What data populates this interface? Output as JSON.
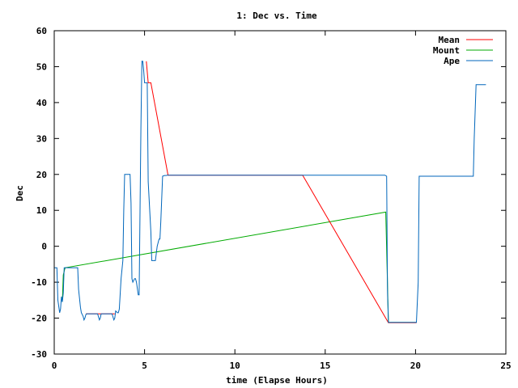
{
  "chart_data": {
    "type": "line",
    "title": "1: Dec vs. Time",
    "xlabel": "time (Elapse Hours)",
    "ylabel": "Dec",
    "xlim": [
      0,
      25
    ],
    "ylim": [
      -30,
      60
    ],
    "xticks": [
      0,
      5,
      10,
      15,
      20,
      25
    ],
    "yticks": [
      -30,
      -20,
      -10,
      0,
      10,
      20,
      30,
      40,
      50,
      60
    ],
    "grid": false,
    "legend_position": "top-right",
    "series": [
      {
        "name": "Mean",
        "color": "#ff0000",
        "x": [
          1.75,
          3.35,
          3.35,
          5.1,
          5.1,
          5.2,
          5.2,
          5.35,
          6.3,
          13.75,
          18.5,
          20.05
        ],
        "y": [
          -18.8,
          -18.8,
          null,
          51.5,
          51.5,
          45.5,
          45.5,
          45.5,
          19.8,
          19.8,
          -21.3,
          -21.3
        ]
      },
      {
        "name": "Mount",
        "color": "#00aa00",
        "x": [
          0.45,
          0.5,
          0.6,
          18.35,
          18.5,
          20.05
        ],
        "y": [
          -15.5,
          -8.0,
          -6.0,
          9.5,
          -21.2,
          -21.2
        ]
      },
      {
        "name": "Ape",
        "color": "#0066bb",
        "x": [
          0.0,
          0.15,
          0.2,
          0.3,
          0.35,
          0.4,
          0.45,
          0.5,
          0.55,
          0.6,
          1.3,
          1.35,
          1.45,
          1.5,
          1.6,
          1.65,
          1.7,
          1.75,
          1.8,
          2.4,
          2.5,
          2.55,
          2.6,
          3.2,
          3.3,
          3.35,
          3.4,
          3.5,
          3.55,
          3.6,
          3.7,
          3.8,
          3.85,
          3.9,
          4.0,
          4.05,
          4.1,
          4.15,
          4.2,
          4.25,
          4.3,
          4.35,
          4.45,
          4.5,
          4.55,
          4.65,
          4.7,
          4.8,
          4.85,
          4.9,
          4.95,
          5.0,
          5.1,
          5.15,
          5.2,
          5.35,
          5.4,
          5.45,
          5.5,
          5.55,
          5.6,
          5.7,
          5.8,
          5.85,
          5.9,
          6.0,
          6.1,
          6.2,
          6.25,
          6.3,
          18.3,
          18.4,
          18.45,
          18.5,
          19.0,
          20.05,
          20.15,
          20.2,
          23.2,
          23.25,
          23.35,
          23.4,
          23.9
        ],
        "y": [
          -6.0,
          -6.0,
          -15.0,
          -18.5,
          -17.5,
          -14.0,
          -15.5,
          -13.0,
          -6.0,
          -6.0,
          -6.0,
          -12.0,
          -17.0,
          -18.5,
          -19.5,
          -20.5,
          -20.0,
          -19.0,
          -18.8,
          -18.8,
          -20.5,
          -20.0,
          -18.8,
          -18.8,
          -20.5,
          -20.0,
          -18.0,
          -18.5,
          -18.5,
          -17.5,
          -9.0,
          -4.0,
          10.0,
          20.0,
          20.0,
          20.0,
          20.0,
          20.0,
          20.0,
          12.0,
          -9.0,
          -10.0,
          -9.0,
          -9.0,
          -10.0,
          -13.5,
          -13.5,
          33.0,
          51.5,
          51.5,
          49.0,
          45.5,
          45.5,
          45.5,
          18.0,
          4.0,
          -4.0,
          -4.0,
          -4.0,
          -4.0,
          -4.0,
          0.0,
          2.0,
          2.0,
          7.0,
          19.5,
          19.7,
          19.7,
          19.8,
          19.8,
          19.8,
          19.5,
          -13.0,
          -21.2,
          -21.2,
          -21.2,
          -10.0,
          19.5,
          19.5,
          30.0,
          45.0,
          45.0,
          45.0
        ]
      }
    ]
  }
}
